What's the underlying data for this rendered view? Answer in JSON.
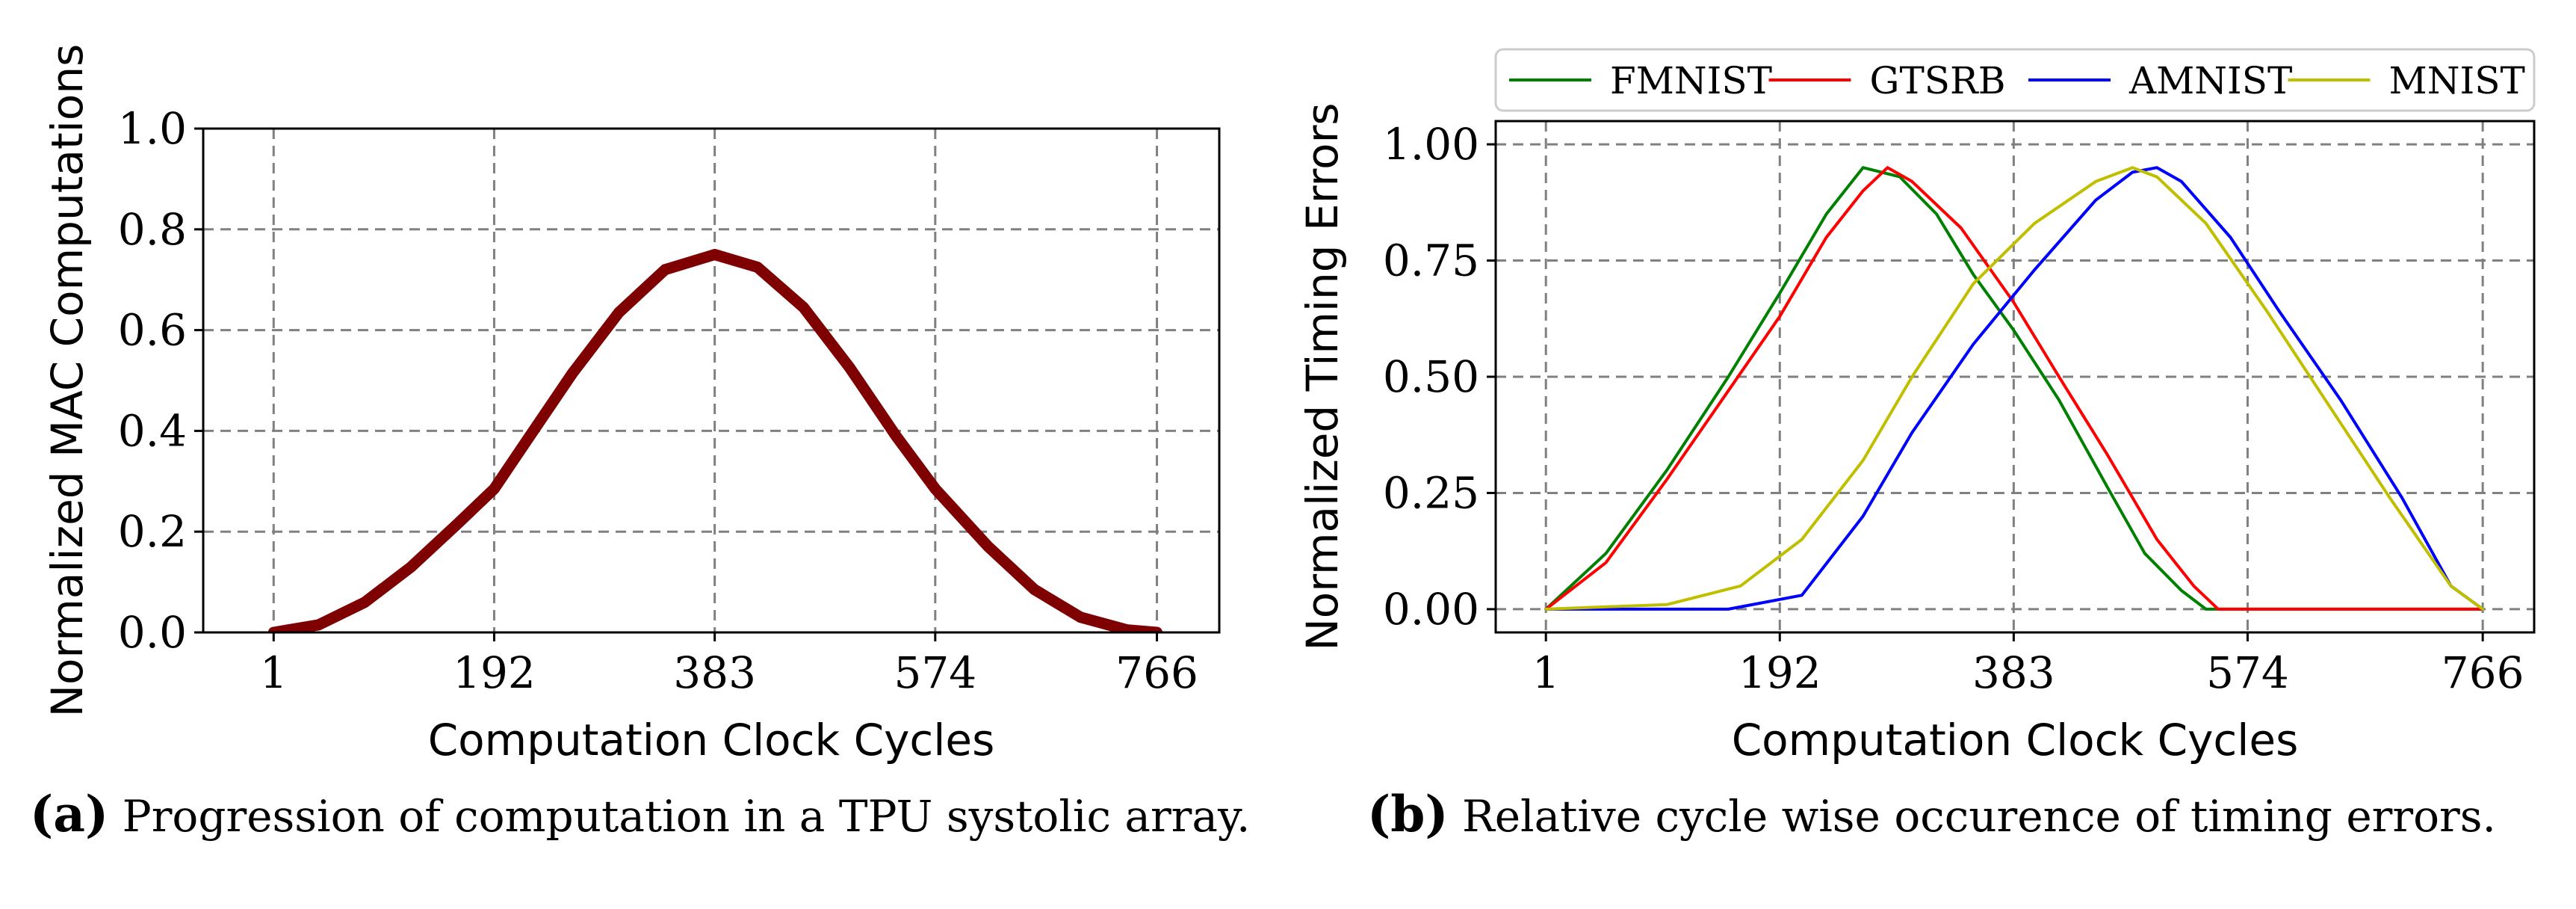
{
  "chart_data": [
    {
      "id": "a",
      "type": "line",
      "title": "",
      "xlabel": "Computation Clock Cycles",
      "ylabel": "Normalized MAC Computations",
      "xlim": [
        -60,
        820
      ],
      "ylim": [
        0,
        1.0
      ],
      "xticks": [
        1,
        192,
        383,
        574,
        766
      ],
      "xtick_labels": [
        "1",
        "192",
        "383",
        "574",
        "766"
      ],
      "yticks": [
        0.0,
        0.2,
        0.4,
        0.6,
        0.8,
        1.0
      ],
      "ytick_labels": [
        "0.0",
        "0.2",
        "0.4",
        "0.6",
        "0.8",
        "1.0"
      ],
      "grid": true,
      "series": [
        {
          "name": "MAC computations",
          "color": "#7f0000",
          "x": [
            1,
            40,
            80,
            120,
            160,
            192,
            220,
            260,
            300,
            340,
            383,
            420,
            460,
            500,
            540,
            574,
            620,
            660,
            700,
            740,
            766
          ],
          "y": [
            0.0,
            0.015,
            0.06,
            0.13,
            0.215,
            0.285,
            0.38,
            0.515,
            0.635,
            0.72,
            0.75,
            0.725,
            0.645,
            0.525,
            0.39,
            0.285,
            0.17,
            0.085,
            0.03,
            0.005,
            0.0
          ]
        }
      ]
    },
    {
      "id": "b",
      "type": "line",
      "title": "",
      "xlabel": "Computation Clock Cycles",
      "ylabel": "Normalized Timing Errors",
      "xlim": [
        -40,
        808
      ],
      "ylim": [
        -0.05,
        1.05
      ],
      "xticks": [
        1,
        192,
        383,
        574,
        766
      ],
      "xtick_labels": [
        "1",
        "192",
        "383",
        "574",
        "766"
      ],
      "yticks": [
        0.0,
        0.25,
        0.5,
        0.75,
        1.0
      ],
      "ytick_labels": [
        "0.00",
        "0.25",
        "0.50",
        "0.75",
        "1.00"
      ],
      "grid": true,
      "legend_position": "top",
      "series": [
        {
          "name": "FMNIST",
          "color": "#008000",
          "x": [
            1,
            50,
            100,
            150,
            192,
            230,
            260,
            290,
            320,
            350,
            383,
            420,
            460,
            490,
            520,
            540,
            766
          ],
          "y": [
            0.0,
            0.12,
            0.3,
            0.5,
            0.68,
            0.85,
            0.95,
            0.93,
            0.85,
            0.72,
            0.6,
            0.45,
            0.26,
            0.12,
            0.04,
            0.0,
            0.0
          ]
        },
        {
          "name": "GTSRB",
          "color": "#ff0000",
          "x": [
            1,
            50,
            100,
            150,
            192,
            230,
            260,
            280,
            300,
            340,
            383,
            420,
            460,
            500,
            530,
            550,
            766
          ],
          "y": [
            0.0,
            0.1,
            0.28,
            0.47,
            0.63,
            0.8,
            0.9,
            0.95,
            0.92,
            0.82,
            0.66,
            0.5,
            0.33,
            0.15,
            0.05,
            0.0,
            0.0
          ]
        },
        {
          "name": "AMNIST",
          "color": "#0000ff",
          "x": [
            1,
            150,
            210,
            260,
            300,
            350,
            400,
            450,
            480,
            500,
            520,
            560,
            600,
            650,
            700,
            740,
            766
          ],
          "y": [
            0.0,
            0.0,
            0.03,
            0.2,
            0.38,
            0.57,
            0.73,
            0.88,
            0.94,
            0.95,
            0.92,
            0.8,
            0.64,
            0.45,
            0.24,
            0.05,
            0.0
          ]
        },
        {
          "name": "MNIST",
          "color": "#bfbf00",
          "x": [
            1,
            100,
            160,
            210,
            260,
            300,
            350,
            400,
            450,
            480,
            500,
            540,
            590,
            640,
            690,
            740,
            766
          ],
          "y": [
            0.0,
            0.01,
            0.05,
            0.15,
            0.32,
            0.5,
            0.7,
            0.83,
            0.92,
            0.95,
            0.93,
            0.83,
            0.64,
            0.44,
            0.24,
            0.05,
            0.0
          ]
        }
      ]
    }
  ],
  "captions": {
    "a_label": "(a)",
    "a_text": "Progression of computation in a TPU systolic array.",
    "b_label": "(b)",
    "b_text": "Relative cycle wise occurence of timing errors."
  }
}
